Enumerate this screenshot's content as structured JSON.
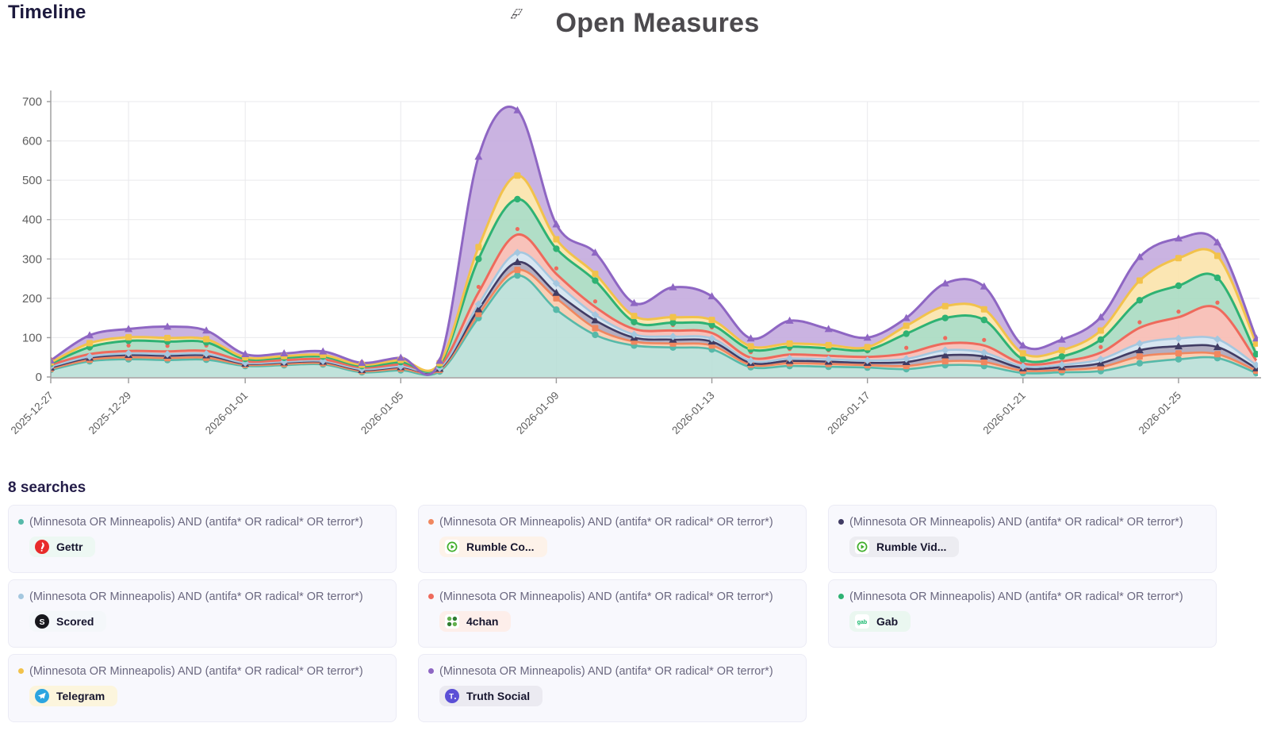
{
  "header": {
    "title": "Timeline",
    "brand": "Open Measures"
  },
  "chart_data": {
    "type": "area",
    "stacked": true,
    "title": "Timeline",
    "xlabel": "",
    "ylabel": "",
    "ylim": [
      0,
      700
    ],
    "yticks": [
      0,
      100,
      200,
      300,
      400,
      500,
      600,
      700
    ],
    "grid": true,
    "x": [
      "2025-12-27",
      "2025-12-28",
      "2025-12-29",
      "2025-12-30",
      "2025-12-31",
      "2026-01-01",
      "2026-01-02",
      "2026-01-03",
      "2026-01-04",
      "2026-01-05",
      "2026-01-06",
      "2026-01-07",
      "2026-01-08",
      "2026-01-09",
      "2026-01-10",
      "2026-01-11",
      "2026-01-12",
      "2026-01-13",
      "2026-01-14",
      "2026-01-15",
      "2026-01-16",
      "2026-01-17",
      "2026-01-18",
      "2026-01-19",
      "2026-01-20",
      "2026-01-21",
      "2026-01-22",
      "2026-01-23",
      "2026-01-24",
      "2026-01-25",
      "2026-01-26",
      "2026-01-27"
    ],
    "xtick_labels": [
      "2025-12-27",
      "2025-12-29",
      "2026-01-01",
      "2026-01-05",
      "2026-01-09",
      "2026-01-13",
      "2026-01-17",
      "2026-01-21",
      "2026-01-25"
    ],
    "series": [
      {
        "name": "Gettr",
        "color": "#56b9a9",
        "fill": "#b7ded6",
        "marker": "circle",
        "values": [
          18,
          40,
          45,
          43,
          44,
          28,
          30,
          32,
          12,
          17,
          14,
          150,
          258,
          171,
          107,
          80,
          75,
          70,
          25,
          28,
          26,
          24,
          20,
          30,
          28,
          10,
          12,
          15,
          35,
          45,
          48,
          10
        ]
      },
      {
        "name": "Rumble Co...",
        "color": "#f0875f",
        "fill": "#f8c8ab",
        "marker": "square",
        "values": [
          3,
          4,
          5,
          5,
          5,
          3,
          3,
          3,
          3,
          4,
          4,
          10,
          14,
          29,
          17,
          10,
          10,
          10,
          6,
          7,
          7,
          6,
          8,
          10,
          10,
          6,
          6,
          10,
          17,
          15,
          10,
          6
        ]
      },
      {
        "name": "Rumble Vid...",
        "color": "#413c64",
        "fill": "#a9a3b8",
        "marker": "triangle",
        "values": [
          3,
          5,
          6,
          6,
          6,
          3,
          4,
          4,
          3,
          4,
          3,
          12,
          20,
          14,
          20,
          10,
          10,
          10,
          5,
          6,
          6,
          6,
          10,
          15,
          14,
          6,
          7,
          10,
          16,
          18,
          18,
          6
        ]
      },
      {
        "name": "Scored",
        "color": "#a4c7df",
        "fill": "#d3e3ef",
        "marker": "diamond",
        "values": [
          3,
          3,
          4,
          4,
          4,
          2,
          2,
          2,
          2,
          2,
          2,
          13,
          24,
          24,
          14,
          8,
          8,
          8,
          5,
          6,
          6,
          6,
          8,
          13,
          10,
          5,
          6,
          10,
          17,
          20,
          20,
          8
        ]
      },
      {
        "name": "4chan",
        "color": "#ee6a5c",
        "fill": "#f7bab1",
        "marker": "dot-above",
        "values": [
          4,
          6,
          6,
          7,
          7,
          4,
          4,
          4,
          4,
          5,
          4,
          30,
          46,
          24,
          20,
          14,
          15,
          14,
          8,
          10,
          9,
          9,
          14,
          17,
          18,
          7,
          9,
          17,
          40,
          54,
          79,
          12
        ]
      },
      {
        "name": "Gab",
        "color": "#2eb273",
        "fill": "#a6d9bf",
        "marker": "circle",
        "values": [
          3,
          18,
          26,
          25,
          22,
          6,
          6,
          7,
          4,
          6,
          4,
          85,
          90,
          64,
          67,
          18,
          20,
          20,
          21,
          20,
          19,
          18,
          50,
          65,
          65,
          11,
          12,
          33,
          70,
          80,
          77,
          16
        ]
      },
      {
        "name": "Telegram",
        "color": "#f2c24b",
        "fill": "#fae3a8",
        "marker": "square",
        "values": [
          3,
          10,
          9,
          9,
          8,
          4,
          4,
          4,
          3,
          5,
          4,
          30,
          60,
          24,
          17,
          15,
          14,
          13,
          8,
          8,
          8,
          7,
          20,
          30,
          27,
          15,
          16,
          23,
          50,
          70,
          56,
          27
        ]
      },
      {
        "name": "Truth Social",
        "color": "#8e66c3",
        "fill": "#c3a9dd",
        "marker": "triangle",
        "values": [
          5,
          20,
          21,
          29,
          22,
          8,
          7,
          9,
          5,
          6,
          6,
          230,
          166,
          38,
          54,
          33,
          76,
          60,
          20,
          58,
          41,
          24,
          20,
          58,
          58,
          20,
          27,
          34,
          60,
          50,
          34,
          13
        ]
      }
    ]
  },
  "searches": {
    "heading": "8 searches",
    "query": "(Minnesota OR Minneapolis) AND (antifa* OR radical* OR terror*)",
    "cards": [
      {
        "label": "Gettr",
        "icon": "gettr",
        "dot": "#56b9a9",
        "pill_bg": "#edf8f3"
      },
      {
        "label": "Rumble Co...",
        "icon": "rumble",
        "dot": "#f0875f",
        "pill_bg": "#fdf2e9"
      },
      {
        "label": "Rumble Vid...",
        "icon": "rumble",
        "dot": "#413c64",
        "pill_bg": "#ececf1"
      },
      {
        "label": "Scored",
        "icon": "scored",
        "dot": "#a4c7df",
        "pill_bg": "#f4f7fa"
      },
      {
        "label": "4chan",
        "icon": "4chan",
        "dot": "#ee6a5c",
        "pill_bg": "#fdeeea"
      },
      {
        "label": "Gab",
        "icon": "gab",
        "dot": "#2eb273",
        "pill_bg": "#eaf7f0"
      },
      {
        "label": "Telegram",
        "icon": "telegram",
        "dot": "#f2c24b",
        "pill_bg": "#fcf5dd"
      },
      {
        "label": "Truth Social",
        "icon": "truthsocial",
        "dot": "#8e66c3",
        "pill_bg": "#ebeaf1"
      }
    ]
  }
}
